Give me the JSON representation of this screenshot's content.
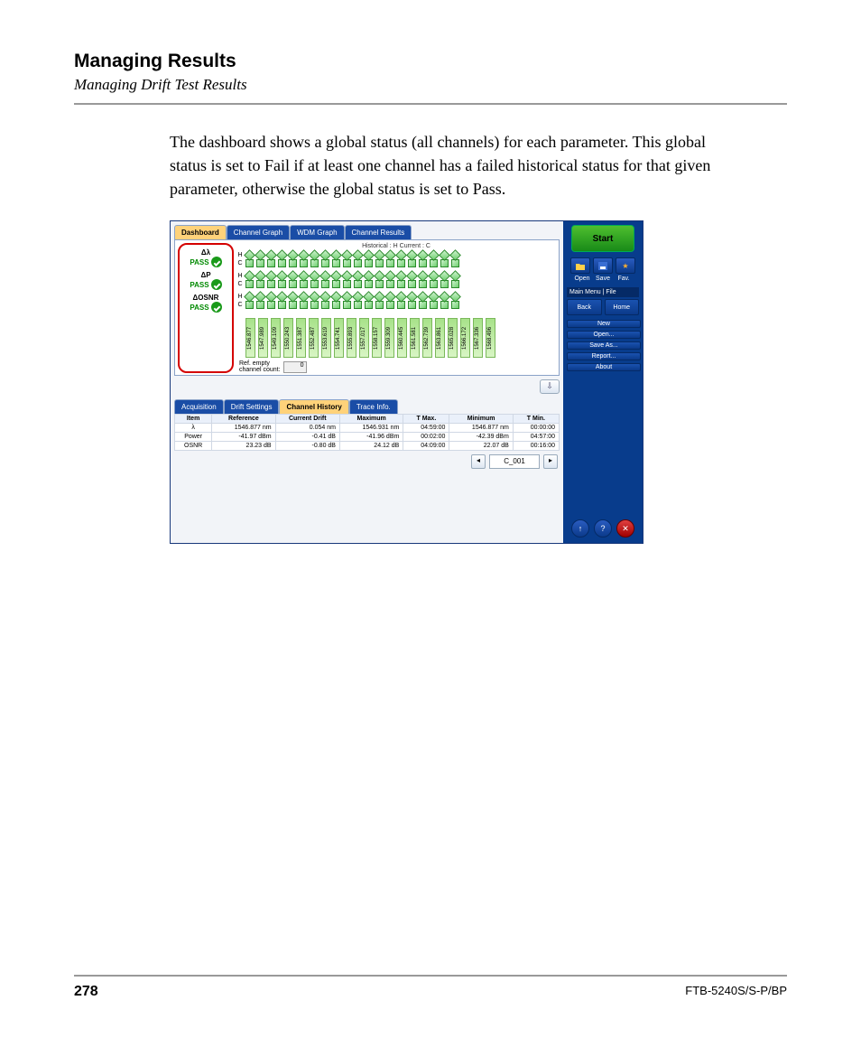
{
  "header": {
    "title": "Managing Results",
    "subtitle": "Managing Drift Test Results"
  },
  "body_text": "The dashboard shows a global status (all channels) for each parameter. This global status is set to Fail if at least one channel has a failed historical status for that given parameter, otherwise the global status is set to Pass.",
  "top_tabs": {
    "items": [
      "Dashboard",
      "Channel Graph",
      "WDM Graph",
      "Channel Results"
    ],
    "active_index": 0
  },
  "matrix": {
    "legend": "Historical : H        Current : C",
    "status_items": [
      {
        "name": "Δλ",
        "pass": "PASS"
      },
      {
        "name": "ΔP",
        "pass": "PASS"
      },
      {
        "name": "ΔOSNR",
        "pass": "PASS"
      }
    ],
    "row_labels": [
      "H",
      "C"
    ],
    "channel_count": 20,
    "wavelengths": [
      "1546.877",
      "1547.989",
      "1549.109",
      "1550.243",
      "1551.387",
      "1552.487",
      "1553.619",
      "1554.741",
      "1555.893",
      "1557.017",
      "1558.157",
      "1559.309",
      "1560.445",
      "1561.581",
      "1562.739",
      "1563.861",
      "1565.028",
      "1566.172",
      "1567.336",
      "1568.496"
    ],
    "ref_empty_label": "Ref. empty\nchannel count:",
    "ref_empty_value": "0"
  },
  "lower_tabs": {
    "items": [
      "Acquisition",
      "Drift Settings",
      "Channel History",
      "Trace Info."
    ],
    "active_index": 2
  },
  "history_table": {
    "columns": [
      "Item",
      "Reference",
      "Current Drift",
      "Maximum",
      "T Max.",
      "Minimum",
      "T Min."
    ],
    "rows": [
      [
        "λ",
        "1546.877 nm",
        "0.054 nm",
        "1546.931 nm",
        "04:59:00",
        "1546.877 nm",
        "00:00:00"
      ],
      [
        "Power",
        "-41.97 dBm",
        "-0.41 dB",
        "-41.96 dBm",
        "00:02:00",
        "-42.39 dBm",
        "04:57:00"
      ],
      [
        "OSNR",
        "23.23 dB",
        "-0.80 dB",
        "24.12 dB",
        "04:09:00",
        "22.07 dB",
        "00:16:00"
      ]
    ]
  },
  "pager": {
    "channel": "C_001"
  },
  "side": {
    "start": "Start",
    "trio_labels": [
      "Open",
      "Save",
      "Fav."
    ],
    "menu_header": "Main Menu | File",
    "back": "Back",
    "home": "Home",
    "items": [
      "New",
      "Open...",
      "Save As...",
      "Report...",
      "About"
    ]
  },
  "footer": {
    "page": "278",
    "model": "FTB-5240S/S-P/BP"
  },
  "colors": {
    "frame": "#083c8c",
    "tab_active": "#ffd27a",
    "pass": "#1a9a1a",
    "highlight_border": "#d40000"
  }
}
